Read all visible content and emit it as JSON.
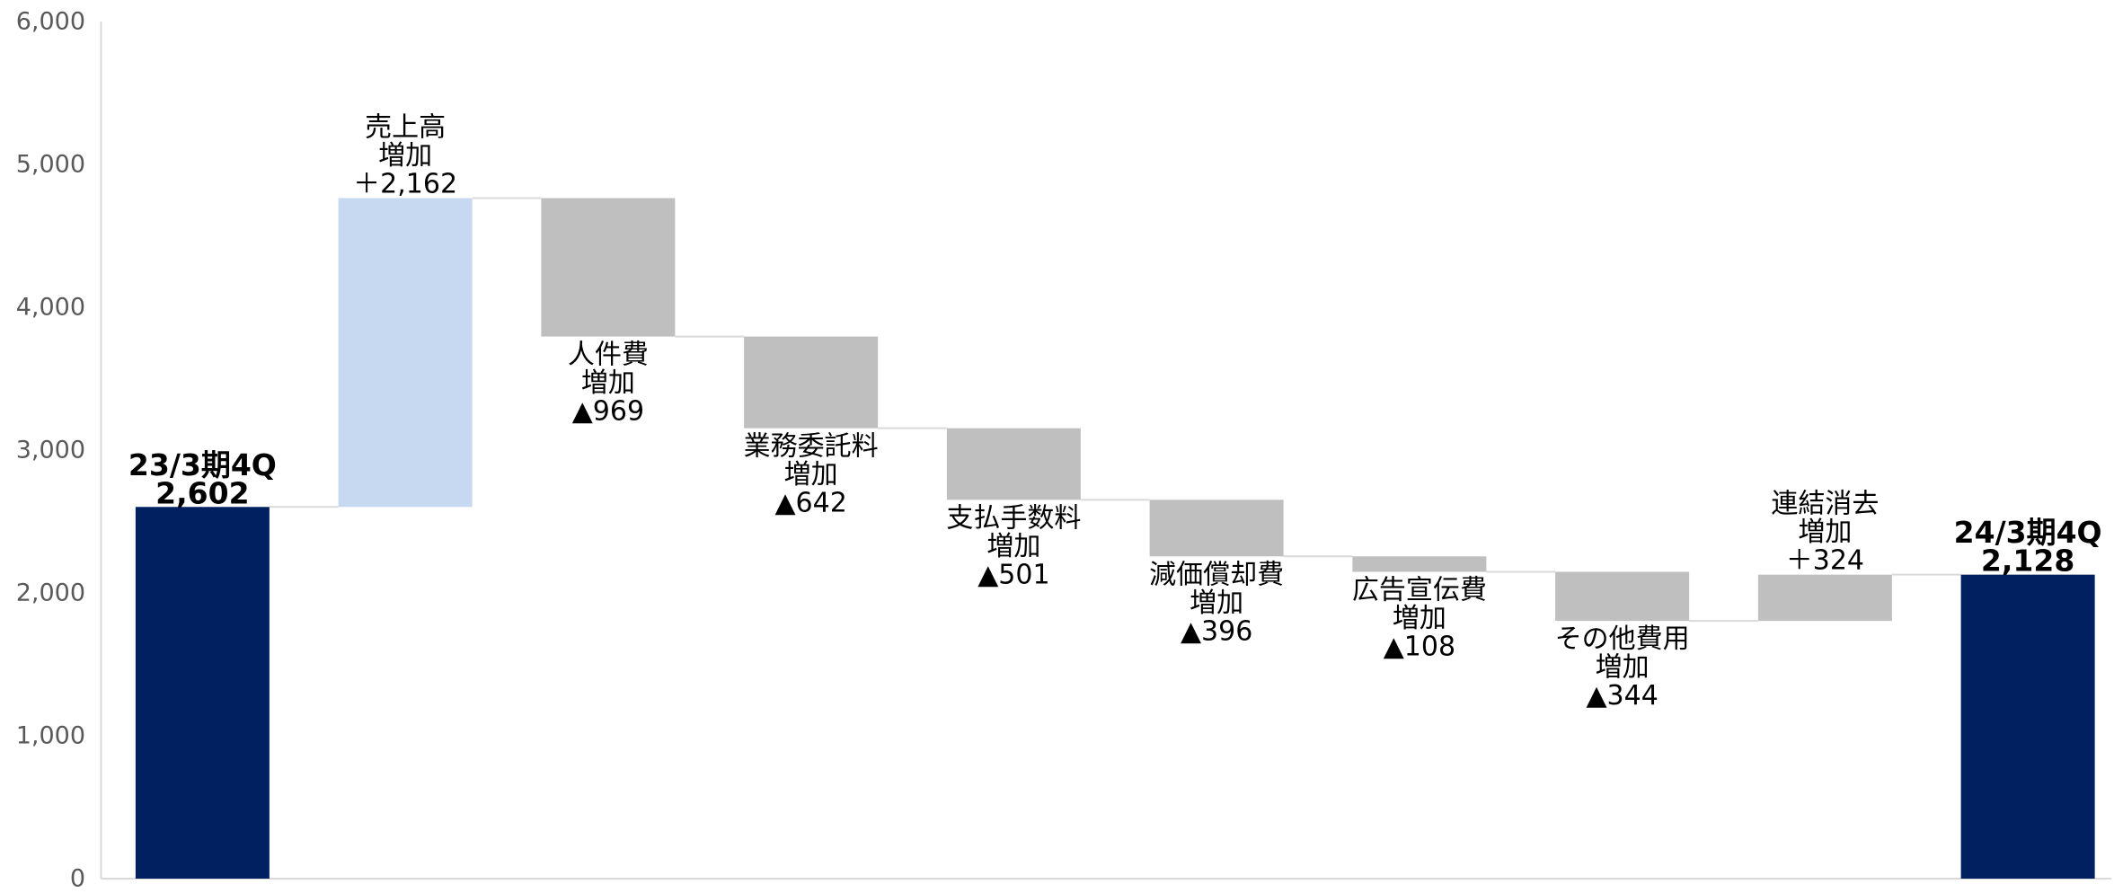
{
  "chart_data": {
    "type": "bar",
    "waterfall": true,
    "ylim": [
      0,
      6000
    ],
    "yticks": [
      0,
      1000,
      2000,
      3000,
      4000,
      5000,
      6000
    ],
    "ytick_labels": [
      "0",
      "1,000",
      "2,000",
      "3,000",
      "4,000",
      "5,000",
      "6,000"
    ],
    "grid": false,
    "axis_color": "#d9d9d9",
    "connector_color": "#d9d9d9",
    "bars": [
      {
        "total": true,
        "category": "23/3期4Q",
        "label": "2,602",
        "value": 2602,
        "color": "#002060"
      },
      {
        "total": false,
        "category": "売上高",
        "sub": "増加",
        "label": "＋2,162",
        "value": 2162,
        "color": "#c6d9f1"
      },
      {
        "total": false,
        "category": "人件費",
        "sub": "増加",
        "label": "▲969",
        "value": -969,
        "color": "#bfbfbf"
      },
      {
        "total": false,
        "category": "業務委託料",
        "sub": "増加",
        "label": "▲642",
        "value": -642,
        "color": "#bfbfbf"
      },
      {
        "total": false,
        "category": "支払手数料",
        "sub": "増加",
        "label": "▲501",
        "value": -501,
        "color": "#bfbfbf"
      },
      {
        "total": false,
        "category": "減価償却費",
        "sub": "増加",
        "label": "▲396",
        "value": -396,
        "color": "#bfbfbf"
      },
      {
        "total": false,
        "category": "広告宣伝費",
        "sub": "増加",
        "label": "▲108",
        "value": -108,
        "color": "#bfbfbf"
      },
      {
        "total": false,
        "category": "その他費用",
        "sub": "増加",
        "label": "▲344",
        "value": -344,
        "color": "#bfbfbf"
      },
      {
        "total": false,
        "category": "連結消去",
        "sub": "増加",
        "label": "＋324",
        "value": 324,
        "color": "#bfbfbf"
      },
      {
        "total": true,
        "category": "24/3期4Q",
        "label": "2,128",
        "value": 2128,
        "color": "#002060"
      }
    ]
  }
}
